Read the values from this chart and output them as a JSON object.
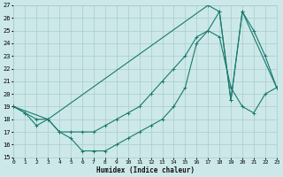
{
  "xlabel": "Humidex (Indice chaleur)",
  "ylabel": "",
  "bg_color": "#cce8e8",
  "grid_color": "#aacccc",
  "line_color": "#1a7a6e",
  "xmin": 0,
  "xmax": 23,
  "ymin": 15,
  "ymax": 27,
  "line1_x": [
    0,
    1,
    2,
    3,
    4,
    5,
    6,
    7,
    8,
    9,
    10,
    11,
    12,
    13,
    14,
    15,
    16,
    17,
    18,
    19,
    20,
    21,
    22,
    23
  ],
  "line1_y": [
    19,
    18.5,
    17.5,
    18,
    17,
    16.5,
    15.5,
    15.5,
    15.5,
    16,
    16.5,
    17,
    17.5,
    18,
    19,
    20.5,
    24,
    25,
    24.5,
    20.5,
    19,
    18.5,
    20,
    20.5
  ],
  "line2_x": [
    0,
    1,
    2,
    3,
    4,
    5,
    6,
    7,
    8,
    9,
    10,
    11,
    12,
    13,
    14,
    15,
    16,
    17,
    18,
    19,
    20,
    21,
    22,
    23
  ],
  "line2_y": [
    19,
    18.5,
    18,
    18,
    17,
    17,
    17,
    17,
    17.5,
    18,
    18.5,
    19,
    20,
    21,
    22,
    23,
    24.5,
    25,
    26.5,
    19.5,
    26.5,
    25,
    23,
    20.5
  ],
  "line3_x": [
    0,
    3,
    17,
    18,
    19,
    20,
    23
  ],
  "line3_y": [
    19,
    18,
    27,
    26.5,
    19.5,
    26.5,
    20.5
  ],
  "xticks": [
    0,
    1,
    2,
    3,
    4,
    5,
    6,
    7,
    8,
    9,
    10,
    11,
    12,
    13,
    14,
    15,
    16,
    17,
    18,
    19,
    20,
    21,
    22,
    23
  ],
  "yticks": [
    15,
    16,
    17,
    18,
    19,
    20,
    21,
    22,
    23,
    24,
    25,
    26,
    27
  ]
}
